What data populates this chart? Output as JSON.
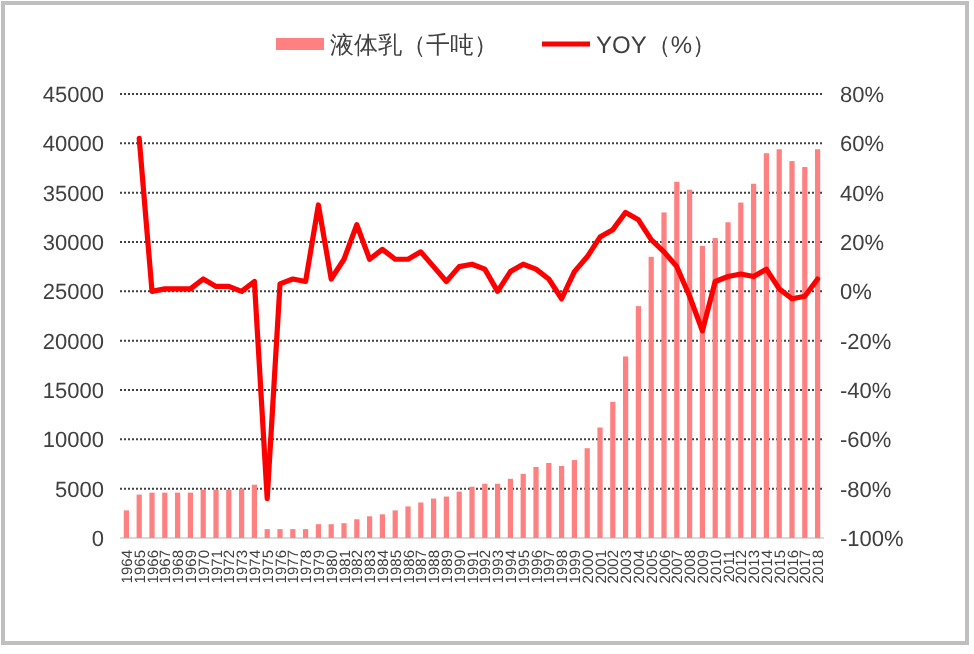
{
  "chart_data": {
    "type": "bar",
    "categories": [
      "1964",
      "1965",
      "1966",
      "1967",
      "1968",
      "1969",
      "1970",
      "1971",
      "1972",
      "1973",
      "1974",
      "1975",
      "1976",
      "1977",
      "1978",
      "1979",
      "1980",
      "1981",
      "1982",
      "1983",
      "1984",
      "1985",
      "1986",
      "1987",
      "1988",
      "1989",
      "1990",
      "1991",
      "1992",
      "1993",
      "1994",
      "1995",
      "1996",
      "1997",
      "1998",
      "1999",
      "2000",
      "2001",
      "2002",
      "2003",
      "2004",
      "2005",
      "2006",
      "2007",
      "2008",
      "2009",
      "2010",
      "2011",
      "2012",
      "2013",
      "2014",
      "2015",
      "2016",
      "2017",
      "2018"
    ],
    "series": [
      {
        "name": "液体乳（千吨）",
        "color": "#ff8080",
        "values": [
          2800,
          4400,
          4600,
          4600,
          4600,
          4600,
          4900,
          4900,
          4900,
          5000,
          5400,
          900,
          900,
          900,
          900,
          1400,
          1400,
          1500,
          1900,
          2200,
          2400,
          2800,
          3200,
          3600,
          4000,
          4200,
          4700,
          5200,
          5500,
          5500,
          6000,
          6500,
          7200,
          7600,
          7300,
          7900,
          9100,
          11200,
          13800,
          18400,
          23500,
          28500,
          33000,
          36100,
          35300,
          29600,
          30400,
          32000,
          34000,
          35900,
          39000,
          39400,
          38200,
          37600,
          39400
        ]
      },
      {
        "name": "YOY（%）",
        "type": "line",
        "axis": "y2",
        "color": "#ff0000",
        "values": [
          null,
          62,
          0,
          1,
          1,
          1,
          5,
          2,
          2,
          0,
          4,
          -84,
          3,
          5,
          4,
          35,
          5,
          13,
          27,
          13,
          17,
          13,
          13,
          16,
          10,
          4,
          10,
          11,
          9,
          0,
          8,
          11,
          9,
          5,
          -3,
          8,
          14,
          22,
          25,
          32,
          29,
          21,
          16,
          10,
          -2,
          -16,
          4,
          6,
          7,
          6,
          9,
          1,
          -3,
          -2,
          5
        ]
      }
    ],
    "ylim": [
      0,
      45000
    ],
    "yticks": [
      0,
      5000,
      10000,
      15000,
      20000,
      25000,
      30000,
      35000,
      40000,
      45000
    ],
    "y2lim": [
      -100,
      80
    ],
    "y2ticks": [
      {
        "value": -100,
        "label": "-100%"
      },
      {
        "value": -80,
        "label": "-80%"
      },
      {
        "value": -60,
        "label": "-60%"
      },
      {
        "value": -40,
        "label": "-40%"
      },
      {
        "value": -20,
        "label": "-20%"
      },
      {
        "value": 0,
        "label": "0%"
      },
      {
        "value": 20,
        "label": "20%"
      },
      {
        "value": 40,
        "label": "40%"
      },
      {
        "value": 60,
        "label": "60%"
      },
      {
        "value": 80,
        "label": "80%"
      }
    ],
    "grid": "y",
    "legend": "top",
    "marker": "none",
    "line_style": "solid"
  }
}
